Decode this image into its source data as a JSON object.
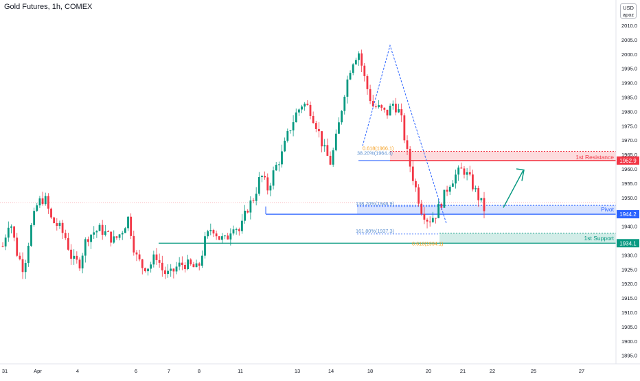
{
  "header": {
    "title": "Gold Futures, 1h, COMEX",
    "currency": "USD",
    "user": "apoz"
  },
  "chart_data": {
    "type": "candlestick",
    "title": "Gold Futures, 1h, COMEX",
    "ylim": [
      1892,
      2013
    ],
    "y_ticks": [
      1895,
      1900,
      1905,
      1910,
      1915,
      1920,
      1925,
      1930,
      1935,
      1940,
      1945,
      1950,
      1955,
      1960,
      1965,
      1970,
      1975,
      1980,
      1985,
      1990,
      1995,
      2000,
      2005,
      2010
    ],
    "x_ticks": [
      "31",
      "Apr",
      "4",
      "6",
      "7",
      "8",
      "11",
      "13",
      "14",
      "18",
      "20",
      "21",
      "22",
      "25",
      "27"
    ],
    "price_path": [
      [
        0,
        1933
      ],
      [
        1,
        1943
      ],
      [
        2,
        1931
      ],
      [
        3,
        1925
      ],
      [
        4,
        1939
      ],
      [
        5,
        1948
      ],
      [
        6,
        1950
      ],
      [
        7,
        1942
      ],
      [
        8,
        1940
      ],
      [
        9,
        1936
      ],
      [
        10,
        1928
      ],
      [
        11,
        1927
      ],
      [
        12,
        1936
      ],
      [
        13,
        1938
      ],
      [
        14,
        1939
      ],
      [
        15,
        1937
      ],
      [
        16,
        1935
      ],
      [
        17,
        1938
      ],
      [
        18,
        1943
      ],
      [
        19,
        1930
      ],
      [
        20,
        1926
      ],
      [
        21,
        1926
      ],
      [
        22,
        1930
      ],
      [
        23,
        1924
      ],
      [
        24,
        1923
      ],
      [
        25,
        1926
      ],
      [
        26,
        1927
      ],
      [
        27,
        1926
      ],
      [
        28,
        1925
      ],
      [
        29,
        1935
      ],
      [
        30,
        1940
      ],
      [
        31,
        1936
      ],
      [
        32,
        1935
      ],
      [
        33,
        1941
      ],
      [
        34,
        1938
      ],
      [
        35,
        1946
      ],
      [
        36,
        1950
      ],
      [
        37,
        1958
      ],
      [
        38,
        1953
      ],
      [
        39,
        1960
      ],
      [
        40,
        1965
      ],
      [
        41,
        1973
      ],
      [
        42,
        1979
      ],
      [
        43,
        1983
      ],
      [
        44,
        1981
      ],
      [
        45,
        1975
      ],
      [
        46,
        1967
      ],
      [
        47,
        1962
      ],
      [
        48,
        1973
      ],
      [
        49,
        1987
      ],
      [
        50,
        1997
      ],
      [
        51,
        2001
      ],
      [
        52,
        1990
      ],
      [
        53,
        1982
      ],
      [
        54,
        1981
      ],
      [
        55,
        1979
      ],
      [
        56,
        1983
      ],
      [
        57,
        1979
      ],
      [
        58,
        1965
      ],
      [
        59,
        1955
      ],
      [
        60,
        1946
      ],
      [
        61,
        1942
      ],
      [
        62,
        1944
      ],
      [
        63,
        1949
      ],
      [
        64,
        1955
      ],
      [
        65,
        1958
      ],
      [
        66,
        1960
      ],
      [
        67,
        1956
      ],
      [
        68,
        1951
      ],
      [
        69,
        1946
      ]
    ],
    "levels": [
      {
        "name": "1st Resistance",
        "value": 1962.9,
        "zone": [
          1962.9,
          1966.1
        ],
        "color": "#f23645"
      },
      {
        "name": "Pivot",
        "value": 1944.2,
        "zone": [
          1944.2,
          1947.3
        ],
        "color": "#2962ff"
      },
      {
        "name": "1st Support",
        "value": 1934.1,
        "zone": [
          1934.1,
          1937.6
        ],
        "color": "#089981"
      }
    ],
    "price_labels": [
      {
        "text": "1962.9",
        "value": 1962.9,
        "color": "#f23645"
      },
      {
        "text": "1944.2",
        "value": 1944.2,
        "color": "#2962ff"
      },
      {
        "text": "1934.1",
        "value": 1934.1,
        "color": "#089981"
      }
    ],
    "fib_labels": [
      {
        "text": "0.618(1966.1)",
        "value": 1966.1,
        "color": "#f59c1a"
      },
      {
        "text": "38.20%(1964.4)",
        "value": 1964.4,
        "color": "#5b8fd0"
      },
      {
        "text": "138.20%(1946.9)",
        "value": 1946.9,
        "color": "#5b8fd0"
      },
      {
        "text": "161.80%(1937.3)",
        "value": 1937.3,
        "color": "#5b8fd0"
      },
      {
        "text": "0.618(1934.1)",
        "value": 1934.1,
        "color": "#f59c1a"
      }
    ],
    "zigzag": [
      [
        1978,
        2003
      ],
      [
        2003,
        1941
      ]
    ],
    "projection_arrow": [
      1946,
      1959
    ],
    "colors": {
      "up": "#089981",
      "down": "#f23645",
      "grid": "#f0f3fa",
      "axis_text": "#131722"
    }
  }
}
